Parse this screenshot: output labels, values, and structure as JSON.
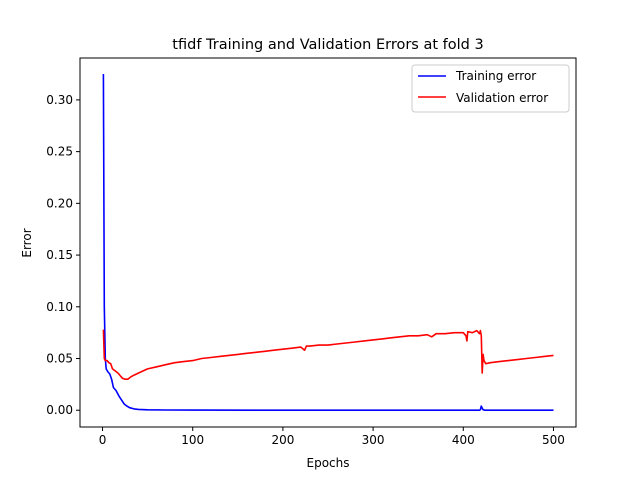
{
  "chart_data": {
    "type": "line",
    "title": "tfidf Training and Validation Errors at fold 3",
    "xlabel": "Epochs",
    "ylabel": "Error",
    "xlim": [
      -25,
      525
    ],
    "ylim": [
      -0.0162,
      0.3405
    ],
    "x_ticks": [
      0,
      100,
      200,
      300,
      400,
      500
    ],
    "x_tick_labels": [
      "0",
      "100",
      "200",
      "300",
      "400",
      "500"
    ],
    "y_ticks": [
      0.0,
      0.05,
      0.1,
      0.15,
      0.2,
      0.25,
      0.3
    ],
    "y_tick_labels": [
      "0.00",
      "0.05",
      "0.10",
      "0.15",
      "0.20",
      "0.25",
      "0.30"
    ],
    "grid": false,
    "legend_position": "top-right",
    "series": [
      {
        "name": "Training error",
        "color": "#0000ff",
        "points": [
          [
            1,
            0.325
          ],
          [
            2,
            0.1
          ],
          [
            3,
            0.05
          ],
          [
            4,
            0.04
          ],
          [
            6,
            0.037
          ],
          [
            8,
            0.035
          ],
          [
            10,
            0.03
          ],
          [
            12,
            0.022
          ],
          [
            15,
            0.019
          ],
          [
            18,
            0.014
          ],
          [
            21,
            0.01
          ],
          [
            24,
            0.006
          ],
          [
            27,
            0.004
          ],
          [
            30,
            0.0025
          ],
          [
            35,
            0.0013
          ],
          [
            40,
            0.0008
          ],
          [
            50,
            0.0004
          ],
          [
            70,
            0.0002
          ],
          [
            100,
            0.0001
          ],
          [
            200,
            0.0
          ],
          [
            300,
            0.0
          ],
          [
            418,
            0.0
          ],
          [
            419,
            0.0005
          ],
          [
            420,
            0.004
          ],
          [
            421,
            0.002
          ],
          [
            422,
            0.0005
          ],
          [
            424,
            0.0
          ],
          [
            500,
            0.0
          ]
        ]
      },
      {
        "name": "Validation error",
        "color": "#ff0000",
        "points": [
          [
            1,
            0.078
          ],
          [
            2,
            0.05
          ],
          [
            3,
            0.048
          ],
          [
            5,
            0.048
          ],
          [
            7,
            0.046
          ],
          [
            9,
            0.045
          ],
          [
            11,
            0.04
          ],
          [
            14,
            0.038
          ],
          [
            17,
            0.036
          ],
          [
            20,
            0.033
          ],
          [
            22,
            0.031
          ],
          [
            25,
            0.03
          ],
          [
            28,
            0.03
          ],
          [
            31,
            0.032
          ],
          [
            35,
            0.034
          ],
          [
            40,
            0.036
          ],
          [
            45,
            0.038
          ],
          [
            50,
            0.04
          ],
          [
            60,
            0.042
          ],
          [
            70,
            0.044
          ],
          [
            80,
            0.046
          ],
          [
            90,
            0.047
          ],
          [
            100,
            0.048
          ],
          [
            110,
            0.05
          ],
          [
            120,
            0.051
          ],
          [
            130,
            0.052
          ],
          [
            140,
            0.053
          ],
          [
            150,
            0.054
          ],
          [
            160,
            0.055
          ],
          [
            170,
            0.056
          ],
          [
            180,
            0.057
          ],
          [
            190,
            0.058
          ],
          [
            200,
            0.059
          ],
          [
            210,
            0.06
          ],
          [
            220,
            0.061
          ],
          [
            224,
            0.058
          ],
          [
            226,
            0.062
          ],
          [
            230,
            0.062
          ],
          [
            240,
            0.063
          ],
          [
            250,
            0.063
          ],
          [
            260,
            0.064
          ],
          [
            270,
            0.065
          ],
          [
            280,
            0.066
          ],
          [
            290,
            0.067
          ],
          [
            300,
            0.068
          ],
          [
            310,
            0.069
          ],
          [
            320,
            0.07
          ],
          [
            330,
            0.071
          ],
          [
            340,
            0.072
          ],
          [
            350,
            0.072
          ],
          [
            360,
            0.073
          ],
          [
            365,
            0.071
          ],
          [
            370,
            0.074
          ],
          [
            380,
            0.074
          ],
          [
            390,
            0.075
          ],
          [
            400,
            0.075
          ],
          [
            403,
            0.072
          ],
          [
            404,
            0.067
          ],
          [
            405,
            0.076
          ],
          [
            410,
            0.075
          ],
          [
            415,
            0.077
          ],
          [
            418,
            0.074
          ],
          [
            419,
            0.077
          ],
          [
            420,
            0.072
          ],
          [
            421,
            0.036
          ],
          [
            422,
            0.054
          ],
          [
            423,
            0.048
          ],
          [
            425,
            0.045
          ],
          [
            430,
            0.046
          ],
          [
            440,
            0.047
          ],
          [
            450,
            0.048
          ],
          [
            460,
            0.049
          ],
          [
            470,
            0.05
          ],
          [
            480,
            0.051
          ],
          [
            490,
            0.052
          ],
          [
            500,
            0.053
          ]
        ]
      }
    ]
  }
}
